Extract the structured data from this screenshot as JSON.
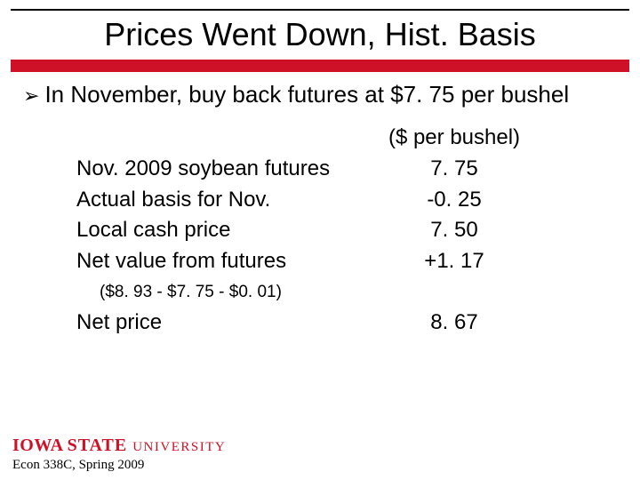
{
  "colors": {
    "red": "#ce1126",
    "black": "#000000",
    "background": "#ffffff"
  },
  "title": "Prices Went Down, Hist. Basis",
  "bullet": {
    "arrow": "➢",
    "text": "In November, buy back futures at $7. 75 per bushel"
  },
  "table": {
    "header": "($ per bushel)",
    "rows": [
      {
        "label": "Nov. 2009 soybean futures",
        "value": "7. 75"
      },
      {
        "label": "Actual basis for Nov.",
        "value": "-0. 25"
      },
      {
        "label": "Local cash price",
        "value": "7. 50"
      },
      {
        "label": "Net value from futures",
        "value": "+1. 17"
      }
    ],
    "calc_note": "($8. 93 - $7. 75 - $0. 01)",
    "net_label": "Net price",
    "net_value": "8. 67"
  },
  "footer": {
    "logo_iowa": "IOWA",
    "logo_state": "STATE",
    "logo_univ": "UNIVERSITY",
    "course": "Econ 338C, Spring 2009"
  }
}
